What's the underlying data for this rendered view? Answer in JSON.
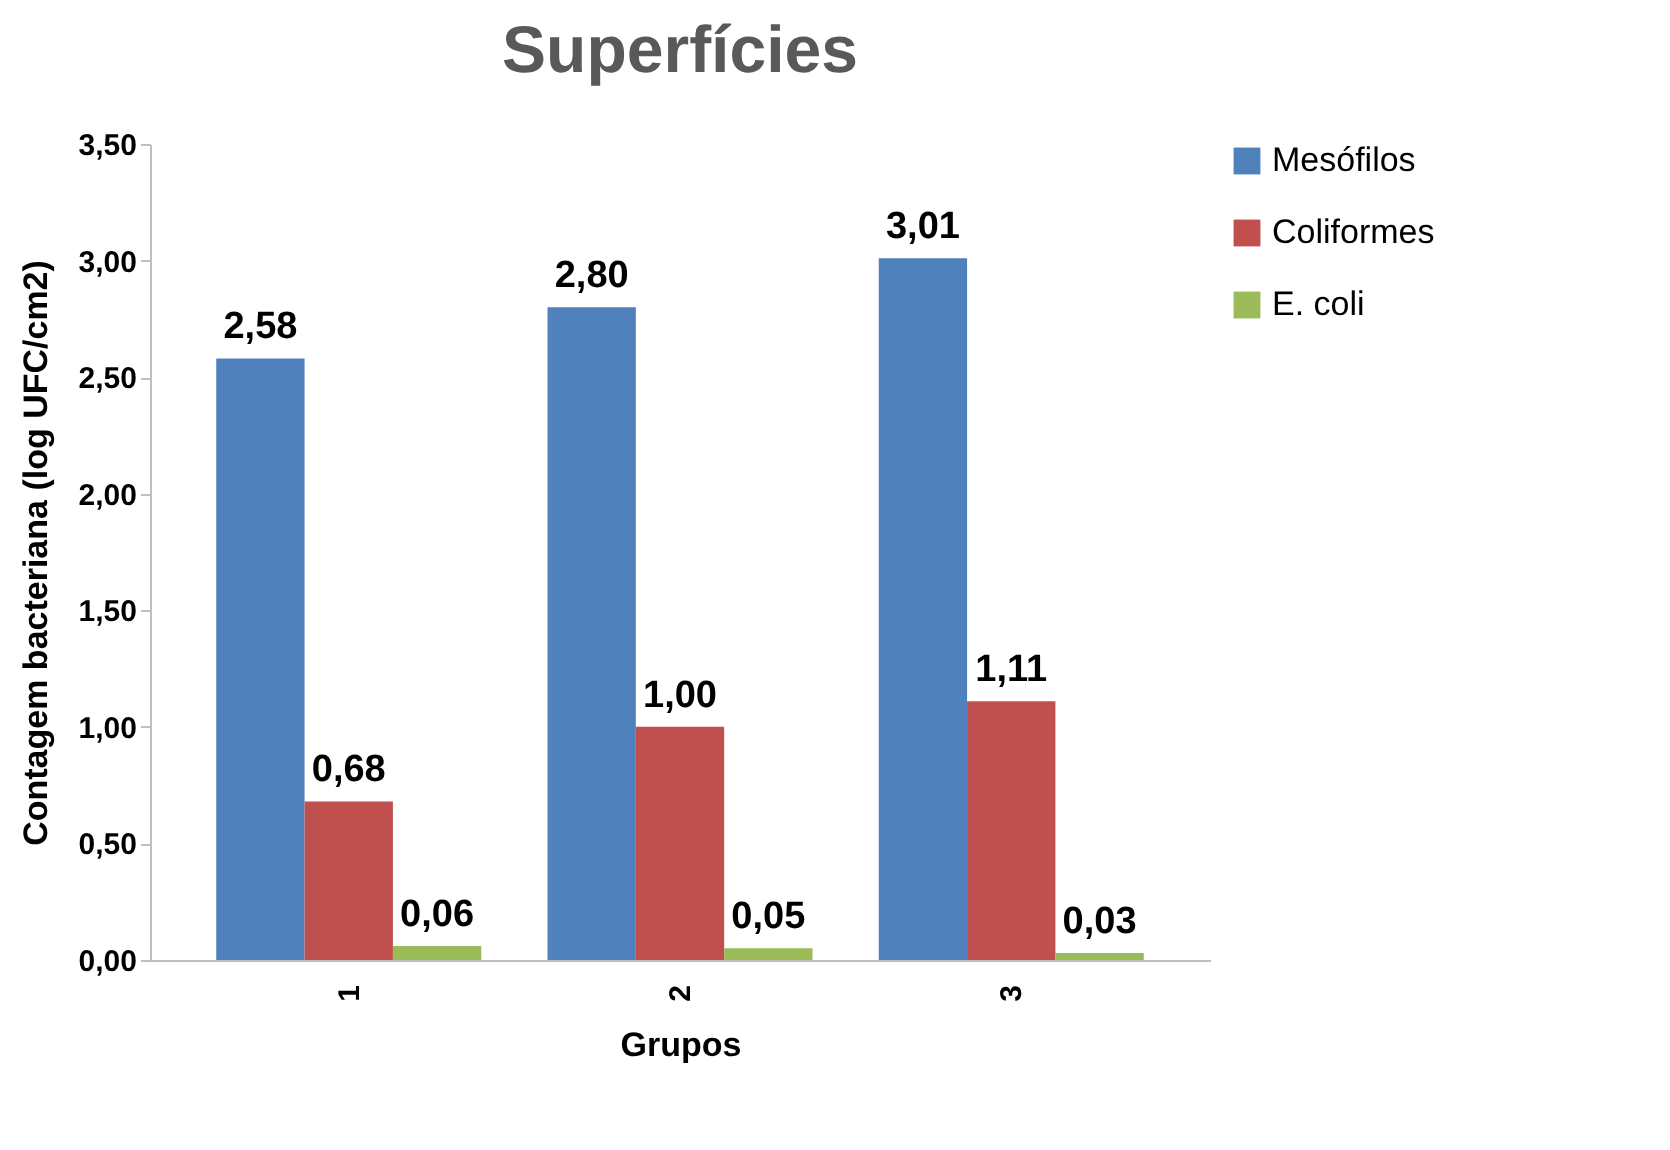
{
  "chart_data": {
    "type": "bar",
    "title": "Superfícies",
    "xlabel": "Grupos",
    "ylabel": "Contagem bacteriana (log UFC/cm2)",
    "categories": [
      "1",
      "2",
      "3"
    ],
    "series": [
      {
        "name": "Mesófilos",
        "color": "#4f81bd",
        "values": [
          2.58,
          2.8,
          3.01
        ],
        "value_labels": [
          "2,58",
          "2,80",
          "3,01"
        ]
      },
      {
        "name": "Coliformes",
        "color": "#c0504d",
        "values": [
          0.68,
          1.0,
          1.11
        ],
        "value_labels": [
          "0,68",
          "1,00",
          "1,11"
        ]
      },
      {
        "name": "E. coli",
        "color": "#9bbb59",
        "values": [
          0.06,
          0.05,
          0.03
        ],
        "value_labels": [
          "0,06",
          "0,05",
          "0,03"
        ]
      }
    ],
    "ylim": [
      0,
      3.5
    ],
    "yticks": [
      {
        "value": 0,
        "label": "0,00"
      },
      {
        "value": 0.5,
        "label": "0,50"
      },
      {
        "value": 1,
        "label": "1,00"
      },
      {
        "value": 1.5,
        "label": "1,50"
      },
      {
        "value": 2,
        "label": "2,00"
      },
      {
        "value": 2.5,
        "label": "2,50"
      },
      {
        "value": 3,
        "label": "3,00"
      },
      {
        "value": 3.5,
        "label": "3,50"
      }
    ],
    "grid": false,
    "legend": "right"
  }
}
